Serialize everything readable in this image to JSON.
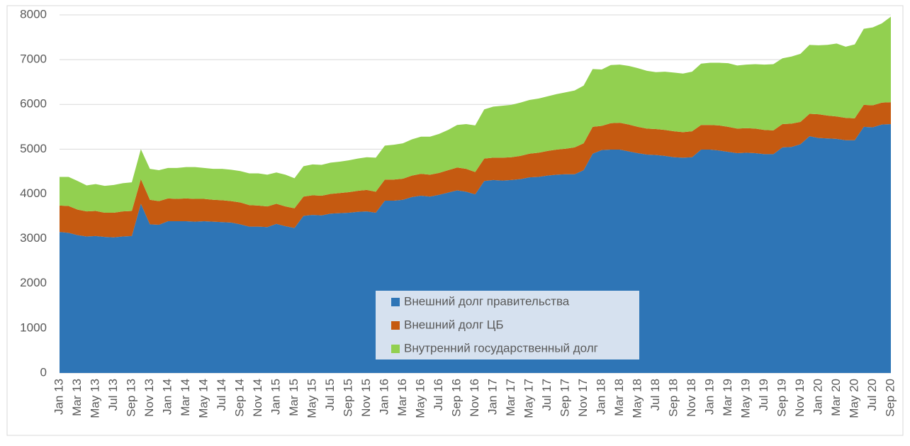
{
  "chart_data": {
    "type": "stacked_area",
    "categories": [
      "Jan 13",
      null,
      "Mar 13",
      null,
      "May 13",
      null,
      "Jul 13",
      null,
      "Sep 13",
      null,
      "Nov 13",
      null,
      "Jan 14",
      null,
      "Mar 14",
      null,
      "May 14",
      null,
      "Jul 14",
      null,
      "Sep 14",
      null,
      "Nov 14",
      null,
      "Jan 15",
      null,
      "Mar 15",
      null,
      "May 15",
      null,
      "Jul 15",
      null,
      "Sep 15",
      null,
      "Nov 15",
      null,
      "Jan 16",
      null,
      "Mar 16",
      null,
      "May 16",
      null,
      "Jul 16",
      null,
      "Sep 16",
      null,
      "Nov 16",
      null,
      "Jan 17",
      null,
      "Mar 17",
      null,
      "May 17",
      null,
      "Jul 17",
      null,
      "Sep 17",
      null,
      "Nov 17",
      null,
      "Jan 18",
      null,
      "Mar 18",
      null,
      "May 18",
      null,
      "Jul 18",
      null,
      "Sep 18",
      null,
      "Nov 18",
      null,
      "Jan 19",
      null,
      "Mar 19",
      null,
      "May 19",
      null,
      "Jul 19",
      null,
      "Sep 19",
      null,
      "Nov 19",
      null,
      "Jan 20",
      null,
      "Mar 20",
      null,
      "May 20",
      null,
      "Jul 20",
      null,
      "Sep 20"
    ],
    "series": [
      {
        "name": "Внешний долг правительства",
        "color": "#2e75b6",
        "values": [
          3150,
          3130,
          3080,
          3050,
          3060,
          3040,
          3030,
          3050,
          3060,
          3780,
          3320,
          3310,
          3390,
          3390,
          3390,
          3380,
          3390,
          3380,
          3370,
          3360,
          3320,
          3270,
          3270,
          3260,
          3330,
          3280,
          3240,
          3510,
          3530,
          3520,
          3560,
          3570,
          3580,
          3600,
          3610,
          3580,
          3850,
          3850,
          3870,
          3930,
          3960,
          3940,
          3980,
          4030,
          4080,
          4050,
          3990,
          4290,
          4310,
          4300,
          4310,
          4330,
          4370,
          4380,
          4410,
          4430,
          4440,
          4440,
          4530,
          4900,
          4980,
          4990,
          4990,
          4950,
          4910,
          4880,
          4870,
          4850,
          4820,
          4810,
          4820,
          4990,
          4990,
          4970,
          4940,
          4910,
          4920,
          4910,
          4890,
          4890,
          5040,
          5050,
          5110,
          5290,
          5250,
          5240,
          5230,
          5200,
          5200,
          5500,
          5490,
          5550,
          5560
        ]
      },
      {
        "name": "Внешний долг ЦБ",
        "color": "#c55a11",
        "values": [
          590,
          600,
          570,
          560,
          560,
          540,
          550,
          560,
          560,
          550,
          550,
          530,
          510,
          500,
          510,
          510,
          500,
          490,
          490,
          480,
          490,
          480,
          470,
          460,
          450,
          440,
          440,
          430,
          440,
          440,
          440,
          450,
          460,
          470,
          480,
          470,
          470,
          470,
          470,
          480,
          490,
          490,
          490,
          500,
          510,
          510,
          500,
          500,
          500,
          510,
          510,
          520,
          530,
          540,
          550,
          560,
          570,
          600,
          600,
          600,
          540,
          590,
          600,
          600,
          590,
          580,
          580,
          580,
          580,
          570,
          580,
          550,
          550,
          560,
          560,
          550,
          550,
          550,
          540,
          530,
          520,
          520,
          500,
          500,
          530,
          510,
          500,
          500,
          490,
          490,
          490,
          490,
          490
        ]
      },
      {
        "name": "Внутренний государственный долг",
        "color": "#92d050",
        "values": [
          640,
          650,
          640,
          580,
          600,
          600,
          620,
          630,
          640,
          670,
          690,
          690,
          680,
          690,
          700,
          710,
          690,
          690,
          700,
          700,
          700,
          710,
          720,
          710,
          700,
          710,
          670,
          680,
          690,
          690,
          700,
          700,
          710,
          720,
          730,
          760,
          760,
          780,
          790,
          810,
          830,
          850,
          870,
          900,
          950,
          1000,
          1040,
          1100,
          1140,
          1160,
          1170,
          1190,
          1200,
          1210,
          1220,
          1240,
          1260,
          1270,
          1290,
          1290,
          1260,
          1300,
          1300,
          1310,
          1310,
          1290,
          1270,
          1300,
          1310,
          1310,
          1330,
          1370,
          1390,
          1400,
          1420,
          1410,
          1420,
          1440,
          1460,
          1480,
          1470,
          1500,
          1520,
          1540,
          1540,
          1580,
          1630,
          1590,
          1650,
          1700,
          1740,
          1770,
          1910
        ]
      }
    ],
    "ylim": [
      0,
      8000
    ],
    "yticks": [
      0,
      1000,
      2000,
      3000,
      4000,
      5000,
      6000,
      7000,
      8000
    ],
    "grid": true
  }
}
